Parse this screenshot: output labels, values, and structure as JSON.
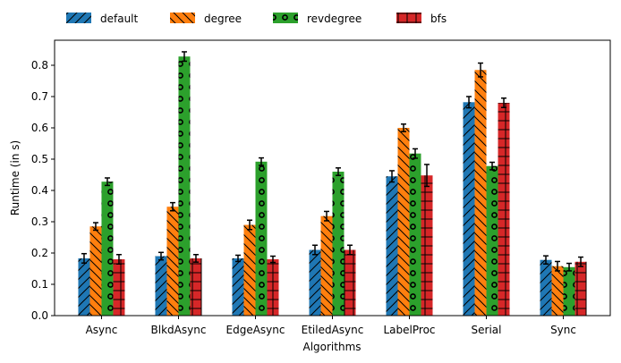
{
  "chart_data": {
    "type": "bar",
    "title": "",
    "xlabel": "Algorithms",
    "ylabel": "Runtime (in s)",
    "categories": [
      "Async",
      "BlkdAsync",
      "EdgeAsync",
      "EtiledAsync",
      "LabelProc",
      "Serial",
      "Sync"
    ],
    "ylim": [
      0,
      0.88
    ],
    "yticks": [
      "0.0",
      "0.1",
      "0.2",
      "0.3",
      "0.4",
      "0.5",
      "0.6",
      "0.7",
      "0.8"
    ],
    "grid": false,
    "legend_position": "top-left, outside plot",
    "series": [
      {
        "name": "default",
        "color": "#1f77b4",
        "hatch": "diagonal-forward",
        "values": [
          0.183,
          0.19,
          0.183,
          0.21,
          0.445,
          0.682,
          0.178
        ],
        "errors": [
          0.015,
          0.012,
          0.01,
          0.015,
          0.018,
          0.018,
          0.013
        ]
      },
      {
        "name": "degree",
        "color": "#ff7f0e",
        "hatch": "diagonal-back",
        "values": [
          0.285,
          0.348,
          0.29,
          0.318,
          0.6,
          0.785,
          0.158
        ],
        "errors": [
          0.012,
          0.013,
          0.015,
          0.015,
          0.012,
          0.022,
          0.015
        ]
      },
      {
        "name": "revdegree",
        "color": "#2ca02c",
        "hatch": "circles",
        "values": [
          0.428,
          0.828,
          0.492,
          0.46,
          0.518,
          0.478,
          0.155
        ],
        "errors": [
          0.012,
          0.015,
          0.012,
          0.012,
          0.015,
          0.012,
          0.012
        ]
      },
      {
        "name": "bfs",
        "color": "#d62728",
        "hatch": "cross",
        "values": [
          0.18,
          0.183,
          0.18,
          0.21,
          0.448,
          0.68,
          0.172
        ],
        "errors": [
          0.015,
          0.012,
          0.01,
          0.015,
          0.035,
          0.015,
          0.015
        ]
      }
    ]
  }
}
